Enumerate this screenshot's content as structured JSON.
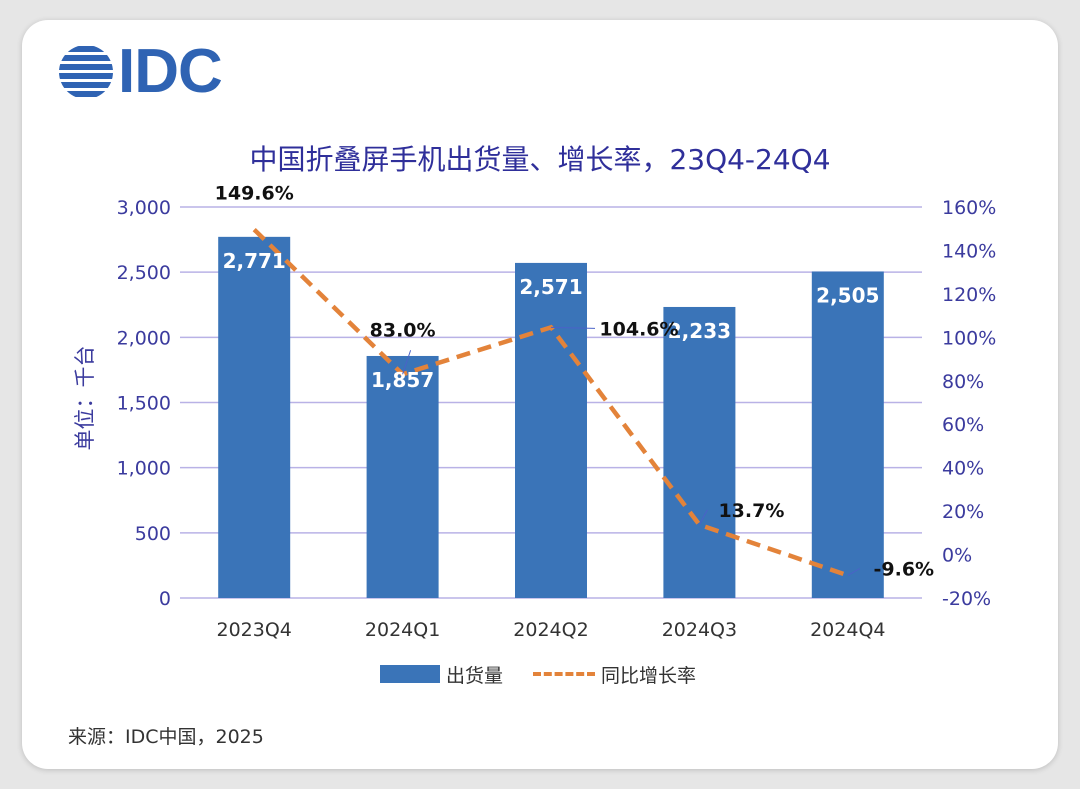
{
  "logo": {
    "text": "IDC"
  },
  "title": "中国折叠屏手机出货量、增长率，23Q4-24Q4",
  "source": "来源：IDC中国，2025",
  "legend": {
    "bar_label": "出货量",
    "line_label": "同比增长率"
  },
  "colors": {
    "bar": "#3a74b8",
    "line": "#e3833a",
    "grid": "#b9b2e6",
    "axis_text": "#3b3b9e",
    "title": "#2f2f9a"
  },
  "chart_data": {
    "type": "bar",
    "categories": [
      "2023Q4",
      "2024Q1",
      "2024Q2",
      "2024Q3",
      "2024Q4"
    ],
    "series": [
      {
        "name": "出货量",
        "type": "bar",
        "axis": "left",
        "values": [
          2771,
          1857,
          2571,
          2233,
          2505
        ],
        "labels": [
          "2,771",
          "1,857",
          "2,571",
          "2,233",
          "2,505"
        ]
      },
      {
        "name": "同比增长率",
        "type": "line",
        "axis": "right",
        "style": "dashed",
        "values": [
          149.6,
          83.0,
          104.6,
          13.7,
          -9.6
        ],
        "labels": [
          "149.6%",
          "83.0%",
          "104.6%",
          "13.7%",
          "-9.6%"
        ]
      }
    ],
    "ylabel": "单位：千台",
    "ylim": [
      0,
      3000
    ],
    "yticks": [
      0,
      500,
      1000,
      1500,
      2000,
      2500,
      3000
    ],
    "ytick_labels": [
      "0",
      "500",
      "1,000",
      "1,500",
      "2,000",
      "2,500",
      "3,000"
    ],
    "y2lim": [
      -20,
      160
    ],
    "y2ticks": [
      -20,
      0,
      20,
      40,
      60,
      80,
      100,
      120,
      140,
      160
    ],
    "y2tick_labels": [
      "-20%",
      "0%",
      "20%",
      "40%",
      "60%",
      "80%",
      "100%",
      "120%",
      "140%",
      "160%"
    ],
    "grid": true,
    "legend_position": "bottom"
  }
}
